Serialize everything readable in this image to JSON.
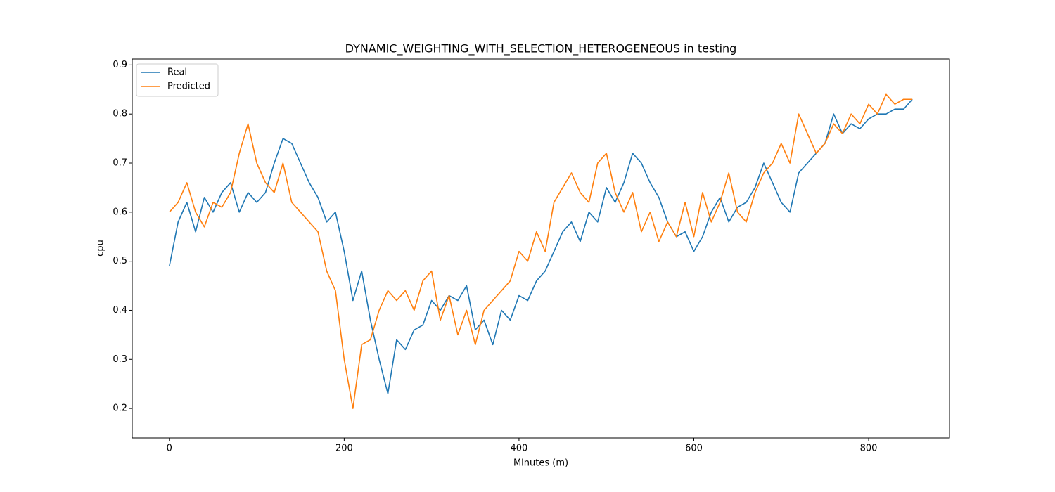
{
  "chart_data": {
    "type": "line",
    "title": "DYNAMIC_WEIGHTING_WITH_SELECTION_HETEROGENEOUS in testing",
    "x_label": "Minutes (m)",
    "y_label": "cpu",
    "x": [
      0,
      10,
      20,
      30,
      40,
      50,
      60,
      70,
      80,
      90,
      100,
      110,
      120,
      130,
      140,
      150,
      160,
      170,
      180,
      190,
      200,
      210,
      220,
      230,
      240,
      250,
      260,
      270,
      280,
      290,
      300,
      310,
      320,
      330,
      340,
      350,
      360,
      370,
      380,
      390,
      400,
      410,
      420,
      430,
      440,
      450,
      460,
      470,
      480,
      490,
      500,
      510,
      520,
      530,
      540,
      550,
      560,
      570,
      580,
      590,
      600,
      610,
      620,
      630,
      640,
      650,
      660,
      670,
      680,
      690,
      700,
      710,
      720,
      730,
      740,
      750,
      760,
      770,
      780,
      790,
      800,
      810,
      820,
      830,
      840,
      850
    ],
    "series": [
      {
        "name": "Real",
        "color": "#1f77b4",
        "values": [
          0.49,
          0.58,
          0.62,
          0.56,
          0.63,
          0.6,
          0.64,
          0.66,
          0.6,
          0.64,
          0.62,
          0.64,
          0.7,
          0.75,
          0.74,
          0.7,
          0.66,
          0.63,
          0.58,
          0.6,
          0.52,
          0.42,
          0.48,
          0.38,
          0.3,
          0.23,
          0.34,
          0.32,
          0.36,
          0.37,
          0.42,
          0.4,
          0.43,
          0.42,
          0.45,
          0.36,
          0.38,
          0.33,
          0.4,
          0.38,
          0.43,
          0.42,
          0.46,
          0.48,
          0.52,
          0.56,
          0.58,
          0.54,
          0.6,
          0.58,
          0.65,
          0.62,
          0.66,
          0.72,
          0.7,
          0.66,
          0.63,
          0.58,
          0.55,
          0.56,
          0.52,
          0.55,
          0.6,
          0.63,
          0.58,
          0.61,
          0.62,
          0.65,
          0.7,
          0.66,
          0.62,
          0.6,
          0.68,
          0.7,
          0.72,
          0.74,
          0.8,
          0.76,
          0.78,
          0.77,
          0.79,
          0.8,
          0.8,
          0.81,
          0.81,
          0.83
        ]
      },
      {
        "name": "Predicted",
        "color": "#ff7f0e",
        "values": [
          0.6,
          0.62,
          0.66,
          0.6,
          0.57,
          0.62,
          0.61,
          0.64,
          0.72,
          0.78,
          0.7,
          0.66,
          0.64,
          0.7,
          0.62,
          0.6,
          0.58,
          0.56,
          0.48,
          0.44,
          0.3,
          0.2,
          0.33,
          0.34,
          0.4,
          0.44,
          0.42,
          0.44,
          0.4,
          0.46,
          0.48,
          0.38,
          0.43,
          0.35,
          0.4,
          0.33,
          0.4,
          0.42,
          0.44,
          0.46,
          0.52,
          0.5,
          0.56,
          0.52,
          0.62,
          0.65,
          0.68,
          0.64,
          0.62,
          0.7,
          0.72,
          0.64,
          0.6,
          0.64,
          0.56,
          0.6,
          0.54,
          0.58,
          0.55,
          0.62,
          0.55,
          0.64,
          0.58,
          0.62,
          0.68,
          0.6,
          0.58,
          0.64,
          0.68,
          0.7,
          0.74,
          0.7,
          0.8,
          0.76,
          0.72,
          0.74,
          0.78,
          0.76,
          0.8,
          0.78,
          0.82,
          0.8,
          0.84,
          0.82,
          0.83,
          0.83
        ]
      }
    ],
    "xlim": [
      -42.5,
      892.5
    ],
    "ylim": [
      0.14,
      0.912
    ],
    "xticks": [
      0,
      200,
      400,
      600,
      800
    ],
    "yticks": [
      0.2,
      0.3,
      0.4,
      0.5,
      0.6,
      0.7,
      0.8,
      0.9
    ],
    "legend": "upper left",
    "grid": false
  }
}
